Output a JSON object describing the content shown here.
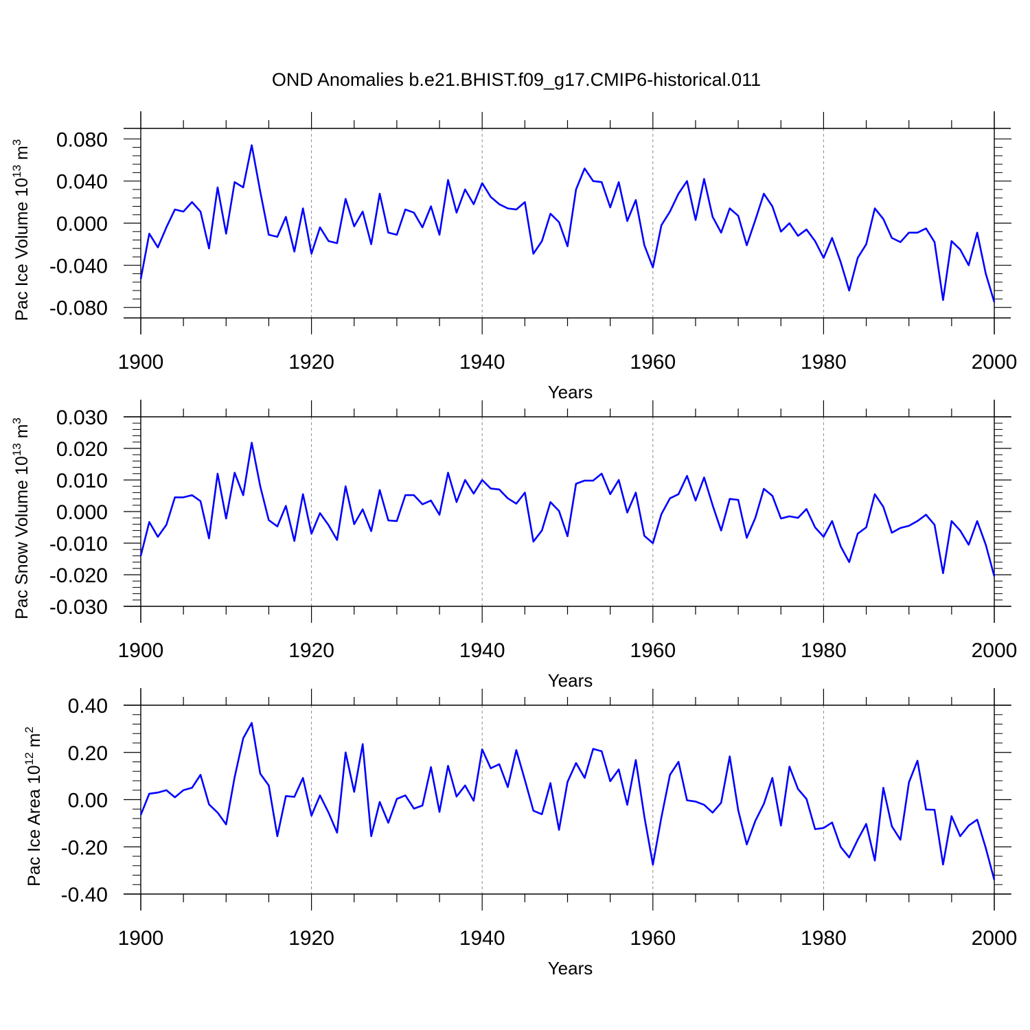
{
  "title": "OND Anomalies b.e21.BHIST.f09_g17.CMIP6-historical.011",
  "colors": {
    "line": "#0000ff",
    "axis": "#000000",
    "grid": "#888888",
    "background": "#ffffff"
  },
  "chart_data": [
    {
      "type": "line",
      "title": "OND Anomalies b.e21.BHIST.f09_g17.CMIP6-historical.011",
      "xlabel": "Years",
      "ylabel_main": "Pac Ice Volume 10",
      "ylabel_sup": "13",
      "ylabel_unit": " m",
      "ylabel_unit_sup": "3",
      "xlim": [
        1900,
        2000
      ],
      "ylim": [
        -0.09,
        0.09
      ],
      "xticks": [
        1900,
        1920,
        1940,
        1960,
        1980,
        2000
      ],
      "xtick_labels": [
        "1900",
        "1920",
        "1940",
        "1960",
        "1980",
        "2000"
      ],
      "yticks": [
        -0.08,
        -0.04,
        0.0,
        0.04,
        0.08
      ],
      "ytick_labels": [
        "-0.080",
        "-0.040",
        "0.000",
        "0.040",
        "0.080"
      ],
      "grid": "vertical dashed at major x ticks",
      "series": [
        {
          "x_start": 1900,
          "x_step": 1,
          "values": [
            -0.053,
            -0.01,
            -0.023,
            -0.004,
            0.013,
            0.011,
            0.02,
            0.011,
            -0.024,
            0.034,
            -0.01,
            0.039,
            0.034,
            0.074,
            0.03,
            -0.011,
            -0.013,
            0.006,
            -0.027,
            0.014,
            -0.029,
            -0.004,
            -0.017,
            -0.019,
            0.023,
            -0.003,
            0.011,
            -0.02,
            0.028,
            -0.009,
            -0.011,
            0.013,
            0.01,
            -0.004,
            0.016,
            -0.011,
            0.041,
            0.01,
            0.032,
            0.018,
            0.038,
            0.025,
            0.018,
            0.014,
            0.013,
            0.02,
            -0.029,
            -0.017,
            0.009,
            0.001,
            -0.022,
            0.032,
            0.052,
            0.04,
            0.039,
            0.015,
            0.039,
            0.002,
            0.022,
            -0.021,
            -0.042,
            -0.002,
            0.011,
            0.028,
            0.04,
            0.003,
            0.042,
            0.006,
            -0.009,
            0.014,
            0.007,
            -0.021,
            0.003,
            0.028,
            0.016,
            -0.008,
            0.0,
            -0.012,
            -0.006,
            -0.017,
            -0.033,
            -0.014,
            -0.037,
            -0.064,
            -0.033,
            -0.02,
            0.014,
            0.004,
            -0.014,
            -0.018,
            -0.009,
            -0.009,
            -0.005,
            -0.018,
            -0.073,
            -0.017,
            -0.025,
            -0.04,
            -0.009,
            -0.048,
            -0.075
          ]
        }
      ]
    },
    {
      "type": "line",
      "xlabel": "Years",
      "ylabel_main": "Pac Snow Volume 10",
      "ylabel_sup": "13",
      "ylabel_unit": " m",
      "ylabel_unit_sup": "3",
      "xlim": [
        1900,
        2000
      ],
      "ylim": [
        -0.03,
        0.03
      ],
      "xticks": [
        1900,
        1920,
        1940,
        1960,
        1980,
        2000
      ],
      "xtick_labels": [
        "1900",
        "1920",
        "1940",
        "1960",
        "1980",
        "2000"
      ],
      "yticks": [
        -0.03,
        -0.02,
        -0.01,
        0.0,
        0.01,
        0.02,
        0.03
      ],
      "ytick_labels": [
        "-0.030",
        "-0.020",
        "-0.010",
        "0.000",
        "0.010",
        "0.020",
        "0.030"
      ],
      "grid": "vertical dashed at major x ticks",
      "series": [
        {
          "x_start": 1900,
          "x_step": 1,
          "values": [
            -0.014,
            -0.0033,
            -0.008,
            -0.0042,
            0.0045,
            0.0045,
            0.0052,
            0.0033,
            -0.0085,
            0.012,
            -0.0022,
            0.0123,
            0.0052,
            0.0218,
            0.008,
            -0.0027,
            -0.0047,
            0.0018,
            -0.0093,
            0.0055,
            -0.007,
            -0.0005,
            -0.0043,
            -0.009,
            0.008,
            -0.004,
            0.0007,
            -0.0062,
            0.0068,
            -0.0028,
            -0.003,
            0.0052,
            0.0052,
            0.0023,
            0.0035,
            -0.001,
            0.0123,
            0.003,
            0.01,
            0.0057,
            0.01,
            0.0073,
            0.007,
            0.0042,
            0.0025,
            0.006,
            -0.0095,
            -0.006,
            0.003,
            0.0002,
            -0.0078,
            0.0088,
            0.0098,
            0.0098,
            0.012,
            0.0055,
            0.01,
            -0.0003,
            0.006,
            -0.0077,
            -0.01,
            -0.0008,
            0.0042,
            0.0055,
            0.0113,
            0.0035,
            0.0108,
            0.002,
            -0.006,
            0.004,
            0.0037,
            -0.0083,
            -0.002,
            0.0072,
            0.005,
            -0.0022,
            -0.0015,
            -0.002,
            0.0008,
            -0.005,
            -0.008,
            -0.003,
            -0.011,
            -0.016,
            -0.007,
            -0.005,
            0.0055,
            0.0015,
            -0.0067,
            -0.0052,
            -0.0045,
            -0.003,
            -0.001,
            -0.0042,
            -0.0195,
            -0.003,
            -0.006,
            -0.0105,
            -0.003,
            -0.0105,
            -0.0205
          ]
        }
      ]
    },
    {
      "type": "line",
      "xlabel": "Years",
      "ylabel_main": "Pac Ice Area 10",
      "ylabel_sup": "12",
      "ylabel_unit": " m",
      "ylabel_unit_sup": "2",
      "xlim": [
        1900,
        2000
      ],
      "ylim": [
        -0.4,
        0.4
      ],
      "xticks": [
        1900,
        1920,
        1940,
        1960,
        1980,
        2000
      ],
      "xtick_labels": [
        "1900",
        "1920",
        "1940",
        "1960",
        "1980",
        "2000"
      ],
      "yticks": [
        -0.4,
        -0.2,
        0.0,
        0.2,
        0.4
      ],
      "ytick_labels": [
        "-0.40",
        "-0.20",
        "0.00",
        "0.20",
        "0.40"
      ],
      "grid": "vertical dashed at major x ticks",
      "series": [
        {
          "x_start": 1900,
          "x_step": 1,
          "values": [
            -0.065,
            0.025,
            0.03,
            0.04,
            0.01,
            0.04,
            0.05,
            0.105,
            -0.02,
            -0.055,
            -0.105,
            0.095,
            0.26,
            0.325,
            0.11,
            0.06,
            -0.155,
            0.015,
            0.012,
            0.092,
            -0.068,
            0.018,
            -0.055,
            -0.14,
            0.2,
            0.033,
            0.235,
            -0.155,
            -0.01,
            -0.098,
            0.003,
            0.018,
            -0.038,
            -0.025,
            0.138,
            -0.052,
            0.143,
            0.013,
            0.06,
            -0.005,
            0.213,
            0.133,
            0.15,
            0.053,
            0.21,
            0.083,
            -0.047,
            -0.062,
            0.07,
            -0.128,
            0.075,
            0.155,
            0.092,
            0.215,
            0.205,
            0.078,
            0.128,
            -0.022,
            0.168,
            -0.072,
            -0.275,
            -0.075,
            0.105,
            0.16,
            -0.003,
            -0.008,
            -0.022,
            -0.055,
            -0.013,
            0.183,
            -0.045,
            -0.19,
            -0.09,
            -0.018,
            0.092,
            -0.11,
            0.14,
            0.045,
            0.003,
            -0.125,
            -0.12,
            -0.097,
            -0.2,
            -0.245,
            -0.17,
            -0.103,
            -0.258,
            0.05,
            -0.113,
            -0.17,
            0.073,
            0.165,
            -0.042,
            -0.043,
            -0.275,
            -0.07,
            -0.155,
            -0.11,
            -0.085,
            -0.205,
            -0.34
          ]
        }
      ]
    }
  ]
}
